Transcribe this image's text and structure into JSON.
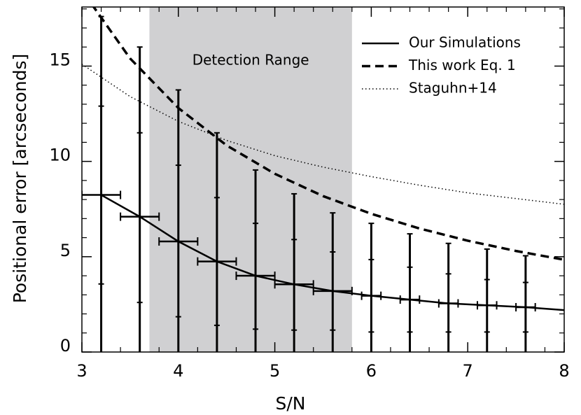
{
  "chart_data": {
    "type": "line",
    "xlabel": "S/N",
    "ylabel": "Positional error [arcseconds]",
    "xlim": [
      3,
      8
    ],
    "ylim": [
      0,
      18.1
    ],
    "xticks": [
      3,
      4,
      5,
      6,
      7,
      8
    ],
    "yticks": [
      0,
      5,
      10,
      15
    ],
    "xminorticks": [
      3.2,
      3.4,
      3.6,
      3.8,
      4.2,
      4.4,
      4.6,
      4.8,
      5.2,
      5.4,
      5.6,
      5.8,
      6.2,
      6.4,
      6.6,
      6.8,
      7.2,
      7.4,
      7.6,
      7.8
    ],
    "yminorticks": [
      1,
      2,
      3,
      4,
      6,
      7,
      8,
      9,
      11,
      12,
      13,
      14,
      16,
      17,
      18
    ],
    "shaded_region": {
      "label": "Detection Range",
      "x": [
        3.7,
        5.8
      ],
      "color": "#d0d0d2"
    },
    "legend": "upper right",
    "series": [
      {
        "name": "Our Simulations",
        "color": "#000000",
        "style": "solid",
        "x": [
          3.2,
          3.6,
          4.0,
          4.4,
          4.8,
          5.2,
          5.6,
          6.0,
          6.4,
          6.8,
          7.2,
          7.6,
          8.0
        ],
        "values": [
          8.24,
          7.1,
          5.8,
          4.75,
          4.0,
          3.55,
          3.2,
          2.95,
          2.75,
          2.55,
          2.45,
          2.35,
          2.2
        ]
      },
      {
        "name": "This work Eq. 1",
        "color": "#000000",
        "style": "dashed",
        "x": [
          3.1,
          3.5,
          4.0,
          4.5,
          5.0,
          5.5,
          6.0,
          6.5,
          7.0,
          7.5,
          8.0
        ],
        "values": [
          18.26,
          15.4,
          12.8,
          10.84,
          9.35,
          8.18,
          7.25,
          6.48,
          5.84,
          5.3,
          4.84
        ]
      },
      {
        "name": "Staguhn+14",
        "color": "#000000",
        "style": "dotted",
        "x": [
          3.0,
          3.5,
          4.0,
          4.5,
          5.0,
          5.5,
          6.0,
          6.5,
          7.0,
          7.5,
          8.0
        ],
        "values": [
          15.1,
          13.4,
          12.1,
          11.1,
          10.3,
          9.7,
          9.2,
          8.75,
          8.35,
          8.05,
          7.75
        ]
      }
    ],
    "error_bars": {
      "color": "#000000",
      "x": [
        3.2,
        3.6,
        4.0,
        4.4,
        4.8,
        5.2,
        5.6,
        6.0,
        6.4,
        6.8,
        7.2,
        7.6
      ],
      "values": [
        8.24,
        7.1,
        5.8,
        4.75,
        4.0,
        3.55,
        3.2,
        2.95,
        2.75,
        2.55,
        2.45,
        2.35
      ],
      "upper": [
        17.6,
        16.0,
        13.75,
        11.5,
        9.55,
        8.3,
        7.3,
        6.75,
        6.2,
        5.7,
        5.4,
        5.05
      ],
      "lower": [
        0,
        0,
        0,
        0,
        0,
        0,
        0,
        0,
        0,
        0,
        0,
        0
      ],
      "upper_inner": [
        12.9,
        11.5,
        9.8,
        8.1,
        6.75,
        5.9,
        5.25,
        4.85,
        4.45,
        4.1,
        3.8,
        3.65
      ],
      "lower_inner": [
        3.57,
        2.6,
        1.85,
        1.4,
        1.2,
        1.15,
        1.15,
        1.05,
        1.05,
        1.05,
        1.05,
        1.05
      ],
      "xerr": [
        0.2,
        0.2,
        0.2,
        0.2,
        0.2,
        0.2,
        0.2,
        0.1,
        0.1,
        0.1,
        0.1,
        0.1
      ]
    }
  }
}
